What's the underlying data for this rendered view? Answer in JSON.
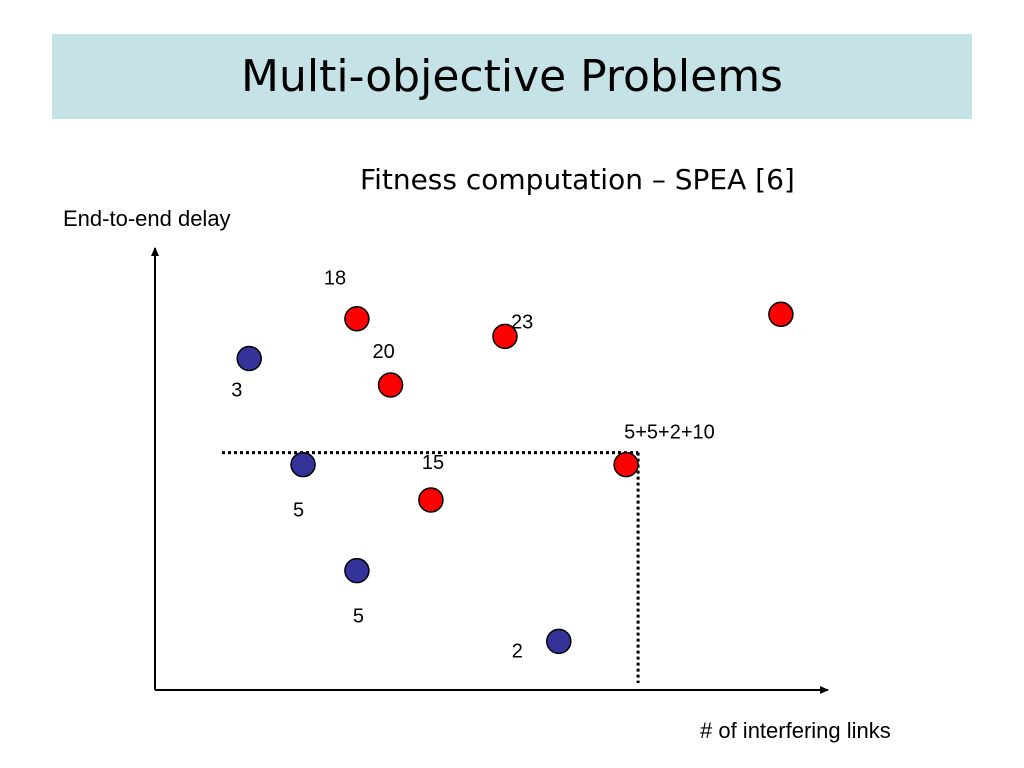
{
  "slide": {
    "title": "Multi-objective Problems",
    "subtitle": "Fitness computation – SPEA [6]"
  },
  "chart_data": {
    "type": "scatter",
    "xlabel": "# of interfering links",
    "ylabel": "End-to-end delay",
    "series": [
      {
        "color": "#ff0000",
        "points": [
          {
            "x": 3.0,
            "y": 8.4,
            "label": "18"
          },
          {
            "x": 5.2,
            "y": 8.0,
            "label": "23"
          },
          {
            "x": 9.3,
            "y": 8.5,
            "label": ""
          },
          {
            "x": 3.5,
            "y": 6.9,
            "label": "20"
          },
          {
            "x": 7.0,
            "y": 5.1,
            "label": "5+5+2+10"
          },
          {
            "x": 4.1,
            "y": 4.3,
            "label": "15"
          }
        ]
      },
      {
        "color": "#333399",
        "points": [
          {
            "x": 1.4,
            "y": 7.5,
            "label": "3"
          },
          {
            "x": 2.2,
            "y": 5.1,
            "label": "5"
          },
          {
            "x": 3.0,
            "y": 2.7,
            "label": "5"
          },
          {
            "x": 6.0,
            "y": 1.1,
            "label": "2"
          }
        ]
      }
    ],
    "reference_point": {
      "x": 7.0,
      "y": 5.1
    }
  }
}
